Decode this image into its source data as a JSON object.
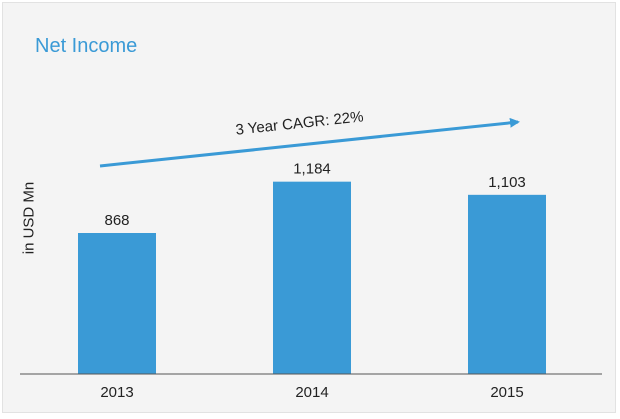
{
  "chart_data": {
    "type": "bar",
    "title": "Net Income",
    "ylabel": "in USD Mn",
    "xlabel": "",
    "categories": [
      "2013",
      "2014",
      "2015"
    ],
    "values": [
      868,
      1184,
      1103
    ],
    "value_labels": [
      "868",
      "1,184",
      "1,103"
    ],
    "ylim": [
      0,
      1400
    ],
    "grid": false,
    "bar_color": "#3a9ad6",
    "annotation": {
      "text": "3 Year CAGR: 22%",
      "type": "trend-arrow",
      "color": "#3a9ad6"
    }
  }
}
